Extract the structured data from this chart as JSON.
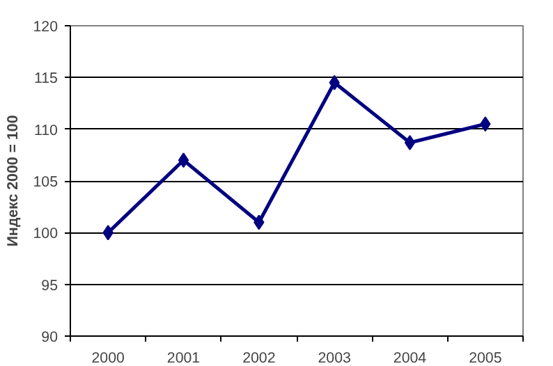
{
  "chart_data": {
    "type": "line",
    "ylabel": "Индекс 2000 = 100",
    "categories": [
      "2000",
      "2001",
      "2002",
      "2003",
      "2004",
      "2005"
    ],
    "series": [
      {
        "color": "#000080",
        "values": [
          100,
          107,
          101,
          114.5,
          108.7,
          110.5
        ]
      }
    ],
    "ylim": [
      90,
      120
    ],
    "yticks": [
      90,
      95,
      100,
      105,
      110,
      115,
      120
    ],
    "grid": "y",
    "marker": "diamond",
    "line_style": "solid"
  }
}
